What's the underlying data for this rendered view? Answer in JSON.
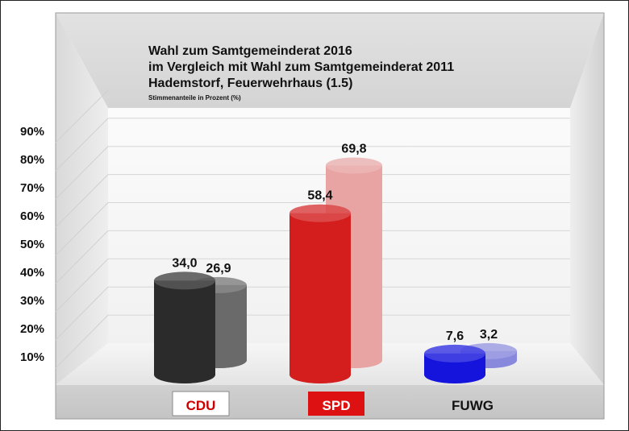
{
  "chart_data": {
    "type": "bar",
    "title": "Wahl zum Samtgemeinderat 2016",
    "subtitle_lines": [
      "im Vergleich mit Wahl zum Samtgemeinderat 2011",
      "Hademstorf, Feuerwehrhaus (1.5)"
    ],
    "ylabel": "Stimmenanteile in Prozent (%)",
    "categories": [
      "CDU",
      "SPD",
      "FUWG"
    ],
    "category_colors": [
      "#cc0000",
      "#ffffff",
      "#111111"
    ],
    "category_label_backgrounds": [
      "#ffffff",
      "#dd1111",
      "transparent"
    ],
    "series": [
      {
        "values": [
          34.0,
          58.4,
          7.6
        ],
        "labels": [
          "34,0",
          "58,4",
          "7,6"
        ]
      },
      {
        "values": [
          26.9,
          69.8,
          3.2
        ],
        "labels": [
          "26,9",
          "69,8",
          "3,2"
        ]
      }
    ],
    "bar_colors": [
      [
        "#2b2b2b",
        "#6a6a6a"
      ],
      [
        "#d41e1e",
        "#e8a3a3"
      ],
      [
        "#1414dd",
        "#8888dd"
      ]
    ],
    "ylim": [
      0,
      90
    ],
    "yticks": [
      "10%",
      "20%",
      "30%",
      "40%",
      "50%",
      "60%",
      "70%",
      "80%",
      "90%"
    ],
    "grid": true,
    "legend": "none"
  }
}
